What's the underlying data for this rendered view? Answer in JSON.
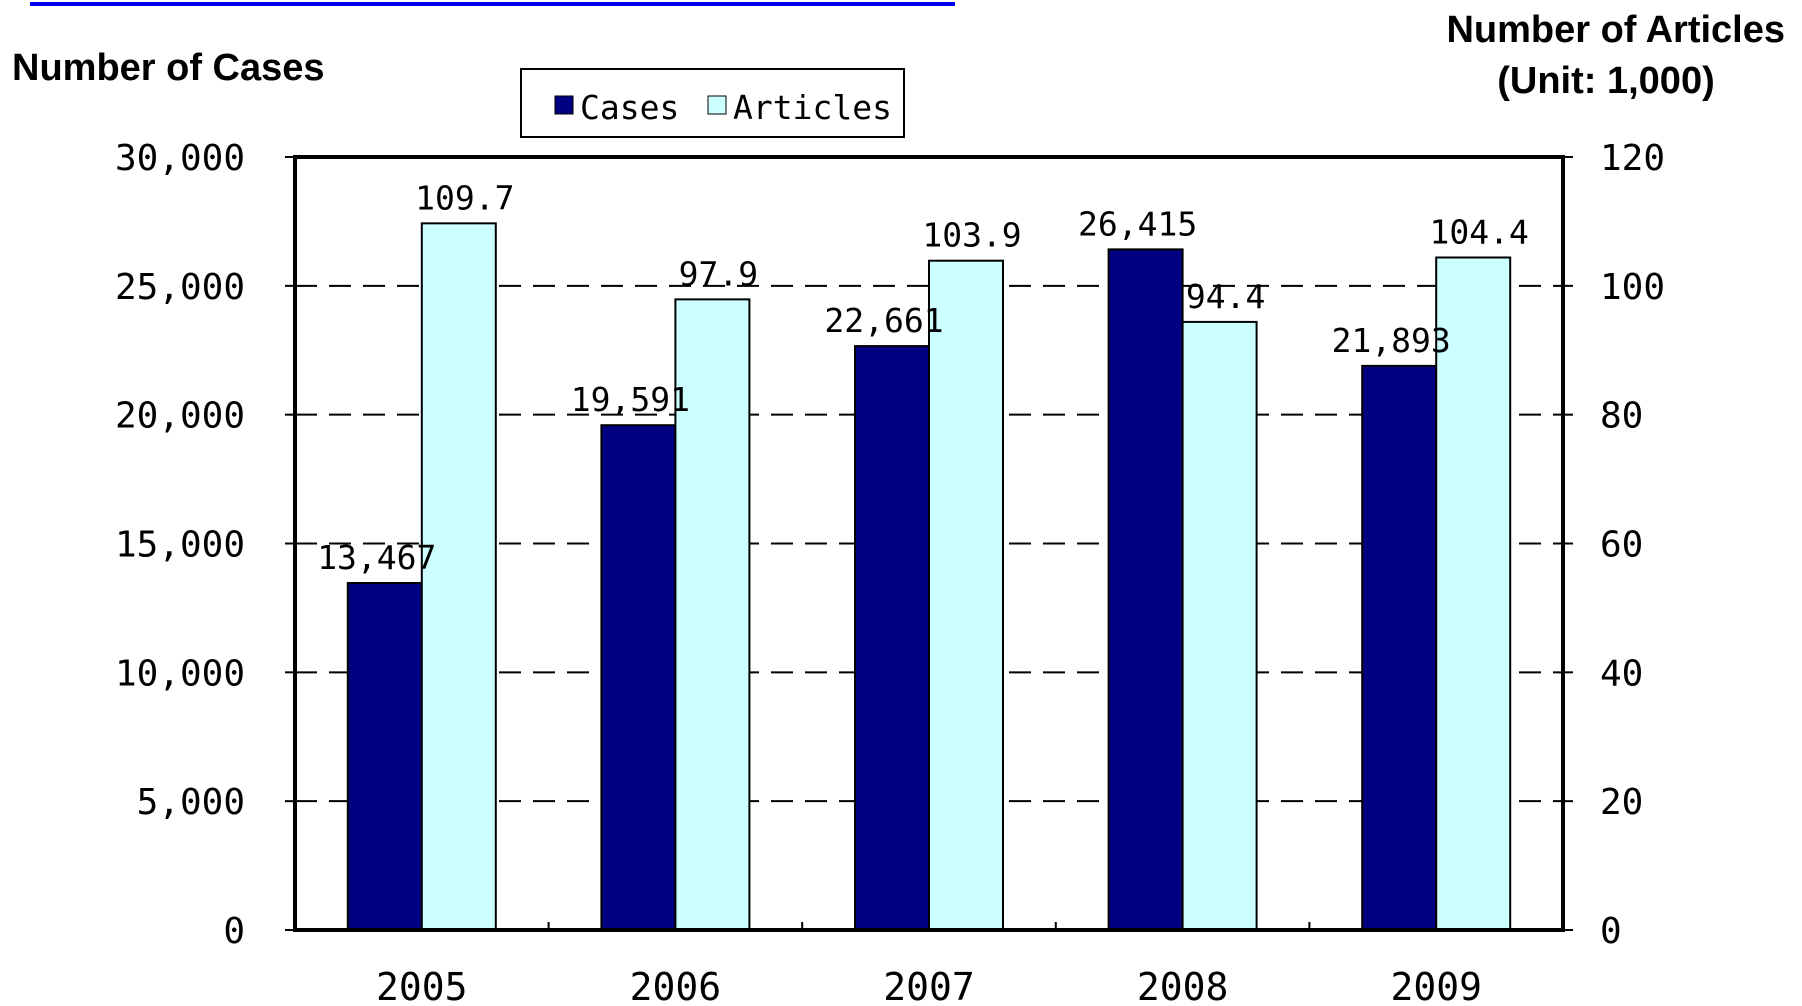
{
  "chart_data": {
    "type": "bar",
    "categories": [
      "2005",
      "2006",
      "2007",
      "2008",
      "2009"
    ],
    "series": [
      {
        "name": "Cases",
        "axis": "left",
        "values": [
          13467,
          19591,
          22661,
          26415,
          21893
        ],
        "labels": [
          "13,467",
          "19,591",
          "22,661",
          "26,415",
          "21,893"
        ],
        "color": "#000080"
      },
      {
        "name": "Articles",
        "axis": "right",
        "values": [
          109.7,
          97.9,
          103.9,
          94.4,
          104.4
        ],
        "labels": [
          "109.7",
          "97.9",
          "103.9",
          "94.4",
          "104.4"
        ],
        "color": "#ccffff"
      }
    ],
    "ylabel": "Number of Cases",
    "y2label_line1": "Number of Articles",
    "y2label_line2": "(Unit: 1,000)",
    "ylim": [
      0,
      30000
    ],
    "y2lim": [
      0,
      120
    ],
    "yticks": [
      0,
      5000,
      10000,
      15000,
      20000,
      25000,
      30000
    ],
    "ytick_labels": [
      "0",
      "5,000",
      "10,000",
      "15,000",
      "20,000",
      "25,000",
      "30,000"
    ],
    "y2ticks": [
      0,
      20,
      40,
      60,
      80,
      100,
      120
    ],
    "y2tick_labels": [
      "0",
      "20",
      "40",
      "60",
      "80",
      "100",
      "120"
    ],
    "grid": "dashed horizontal",
    "legend_position": "top-center",
    "legend_entries": [
      "Cases",
      "Articles"
    ],
    "colors": {
      "cases": "#000080",
      "articles": "#ccffff",
      "axis": "#000000",
      "link": "#0000ee"
    }
  }
}
